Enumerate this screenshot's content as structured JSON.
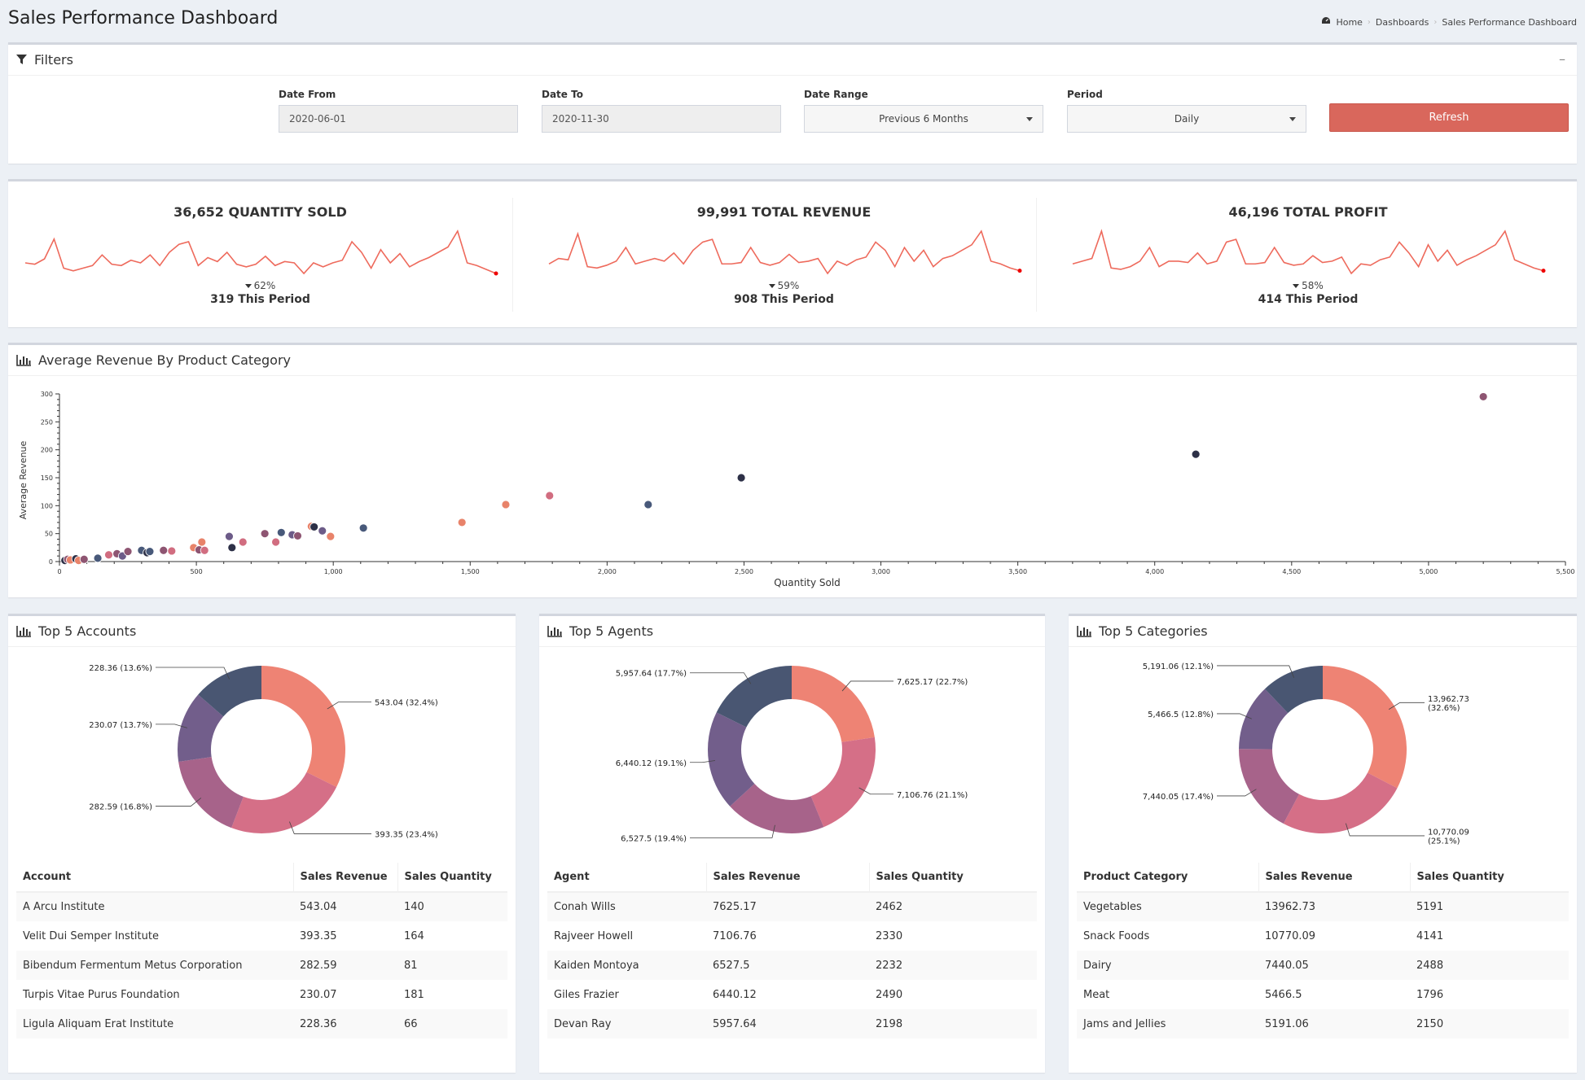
{
  "header": {
    "title": "Sales Performance Dashboard",
    "breadcrumb": [
      "Home",
      "Dashboards",
      "Sales Performance Dashboard"
    ]
  },
  "filters": {
    "title": "Filters",
    "date_from": {
      "label": "Date From",
      "value": "2020-06-01"
    },
    "date_to": {
      "label": "Date To",
      "value": "2020-11-30"
    },
    "date_range": {
      "label": "Date Range",
      "value": "Previous 6 Months"
    },
    "period": {
      "label": "Period",
      "value": "Daily"
    },
    "refresh_label": "Refresh",
    "collapse_icon": "minus-icon"
  },
  "kpis": [
    {
      "title": "36,652 QUANTITY SOLD",
      "change": "62%",
      "period": "319 This Period",
      "spark": [
        12,
        11,
        15,
        30,
        8,
        6,
        8,
        10,
        18,
        11,
        10,
        14,
        12,
        18,
        10,
        20,
        26,
        28,
        10,
        16,
        13,
        20,
        11,
        9,
        11,
        17,
        10,
        13,
        12,
        4,
        12,
        9,
        12,
        14,
        28,
        20,
        8,
        22,
        12,
        19,
        9,
        13,
        16,
        20,
        24,
        36,
        12,
        10,
        7,
        4
      ]
    },
    {
      "title": "99,991 TOTAL REVENUE",
      "change": "59%",
      "period": "908 This Period",
      "spark": [
        10,
        14,
        13,
        32,
        8,
        7,
        9,
        12,
        22,
        10,
        12,
        14,
        12,
        18,
        10,
        20,
        26,
        28,
        10,
        10,
        11,
        22,
        11,
        9,
        11,
        17,
        11,
        12,
        14,
        3,
        12,
        9,
        13,
        15,
        26,
        20,
        8,
        22,
        12,
        20,
        8,
        14,
        16,
        20,
        24,
        34,
        12,
        10,
        7,
        5
      ]
    },
    {
      "title": "46,196 TOTAL PROFIT",
      "change": "58%",
      "period": "414 This Period",
      "spark": [
        10,
        12,
        14,
        34,
        7,
        6,
        8,
        12,
        22,
        8,
        12,
        12,
        11,
        18,
        10,
        12,
        26,
        28,
        10,
        10,
        11,
        22,
        11,
        9,
        10,
        16,
        11,
        12,
        15,
        3,
        10,
        9,
        13,
        15,
        26,
        18,
        8,
        24,
        12,
        20,
        9,
        13,
        16,
        20,
        24,
        34,
        13,
        10,
        7,
        5
      ]
    }
  ],
  "scatter": {
    "title": "Average Revenue By Product Category",
    "chart_data": {
      "type": "scatter",
      "xlabel": "Quantity Sold",
      "ylabel": "Average Revenue",
      "xlim": [
        0,
        5500
      ],
      "ylim": [
        0,
        300
      ],
      "x_ticks": [
        "0",
        "500",
        "1,000",
        "1,500",
        "2,000",
        "2,500",
        "3,000",
        "3,500",
        "4,000",
        "4,500",
        "5,000",
        "5,500"
      ],
      "y_ticks": [
        "0",
        "50",
        "100",
        "150",
        "200",
        "250",
        "300"
      ],
      "points": [
        {
          "x": 20,
          "y": 2,
          "c": "#2d3047"
        },
        {
          "x": 30,
          "y": 4,
          "c": "#8e5572"
        },
        {
          "x": 40,
          "y": 3,
          "c": "#e8836a"
        },
        {
          "x": 60,
          "y": 5,
          "c": "#2d3047"
        },
        {
          "x": 70,
          "y": 2,
          "c": "#e8836a"
        },
        {
          "x": 90,
          "y": 4,
          "c": "#8e5572"
        },
        {
          "x": 140,
          "y": 6,
          "c": "#48597a"
        },
        {
          "x": 180,
          "y": 12,
          "c": "#d16d80"
        },
        {
          "x": 210,
          "y": 14,
          "c": "#8e5572"
        },
        {
          "x": 230,
          "y": 10,
          "c": "#6c5b88"
        },
        {
          "x": 250,
          "y": 18,
          "c": "#8e5572"
        },
        {
          "x": 300,
          "y": 20,
          "c": "#48597a"
        },
        {
          "x": 320,
          "y": 16,
          "c": "#2d3047"
        },
        {
          "x": 330,
          "y": 18,
          "c": "#48597a"
        },
        {
          "x": 380,
          "y": 20,
          "c": "#8e5572"
        },
        {
          "x": 410,
          "y": 19,
          "c": "#d16d80"
        },
        {
          "x": 490,
          "y": 25,
          "c": "#e8836a"
        },
        {
          "x": 510,
          "y": 21,
          "c": "#8e5572"
        },
        {
          "x": 520,
          "y": 35,
          "c": "#e8836a"
        },
        {
          "x": 530,
          "y": 20,
          "c": "#d16d80"
        },
        {
          "x": 620,
          "y": 45,
          "c": "#6c5b88"
        },
        {
          "x": 630,
          "y": 25,
          "c": "#2d3047"
        },
        {
          "x": 670,
          "y": 35,
          "c": "#d16d80"
        },
        {
          "x": 750,
          "y": 50,
          "c": "#8e5572"
        },
        {
          "x": 790,
          "y": 35,
          "c": "#d16d80"
        },
        {
          "x": 810,
          "y": 52,
          "c": "#48597a"
        },
        {
          "x": 850,
          "y": 48,
          "c": "#6c5b88"
        },
        {
          "x": 870,
          "y": 46,
          "c": "#8e5572"
        },
        {
          "x": 920,
          "y": 63,
          "c": "#e8836a"
        },
        {
          "x": 930,
          "y": 62,
          "c": "#2d3047"
        },
        {
          "x": 960,
          "y": 55,
          "c": "#6c5b88"
        },
        {
          "x": 990,
          "y": 45,
          "c": "#e8836a"
        },
        {
          "x": 1110,
          "y": 60,
          "c": "#48597a"
        },
        {
          "x": 1470,
          "y": 70,
          "c": "#e8836a"
        },
        {
          "x": 1630,
          "y": 102,
          "c": "#e8836a"
        },
        {
          "x": 1790,
          "y": 118,
          "c": "#d16d80"
        },
        {
          "x": 2150,
          "y": 102,
          "c": "#48597a"
        },
        {
          "x": 2490,
          "y": 150,
          "c": "#2d3047"
        },
        {
          "x": 4150,
          "y": 192,
          "c": "#2d3047"
        },
        {
          "x": 5200,
          "y": 295,
          "c": "#8e5572"
        }
      ]
    }
  },
  "donut_colors": [
    "#ee8374",
    "#d56f87",
    "#a7638a",
    "#725e8b",
    "#495672"
  ],
  "accounts": {
    "title": "Top 5 Accounts",
    "labels": [
      "543.04 (32.4%)",
      "393.35 (23.4%)",
      "282.59 (16.8%)",
      "230.07 (13.7%)",
      "228.36 (13.6%)"
    ],
    "chart_data": {
      "type": "pie",
      "values": [
        543.04,
        393.35,
        282.59,
        230.07,
        228.36
      ]
    },
    "columns": [
      "Account",
      "Sales Revenue",
      "Sales Quantity"
    ],
    "rows": [
      [
        "A Arcu Institute",
        "543.04",
        "140"
      ],
      [
        "Velit Dui Semper Institute",
        "393.35",
        "164"
      ],
      [
        "Bibendum Fermentum Metus Corporation",
        "282.59",
        "81"
      ],
      [
        "Turpis Vitae Purus Foundation",
        "230.07",
        "181"
      ],
      [
        "Ligula Aliquam Erat Institute",
        "228.36",
        "66"
      ]
    ]
  },
  "agents": {
    "title": "Top 5 Agents",
    "labels": [
      "7,625.17 (22.7%)",
      "7,106.76 (21.1%)",
      "6,527.5 (19.4%)",
      "6,440.12 (19.1%)",
      "5,957.64 (17.7%)"
    ],
    "chart_data": {
      "type": "pie",
      "values": [
        7625.17,
        7106.76,
        6527.5,
        6440.12,
        5957.64
      ]
    },
    "columns": [
      "Agent",
      "Sales Revenue",
      "Sales Quantity"
    ],
    "rows": [
      [
        "Conah Wills",
        "7625.17",
        "2462"
      ],
      [
        "Rajveer Howell",
        "7106.76",
        "2330"
      ],
      [
        "Kaiden Montoya",
        "6527.5",
        "2232"
      ],
      [
        "Giles Frazier",
        "6440.12",
        "2490"
      ],
      [
        "Devan Ray",
        "5957.64",
        "2198"
      ]
    ]
  },
  "categories": {
    "title": "Top 5 Categories",
    "labels": [
      "13,962.73\n(32.6%)",
      "10,770.09\n(25.1%)",
      "7,440.05 (17.4%)",
      "5,466.5 (12.8%)",
      "5,191.06 (12.1%)"
    ],
    "chart_data": {
      "type": "pie",
      "values": [
        13962.73,
        10770.09,
        7440.05,
        5466.5,
        5191.06
      ]
    },
    "columns": [
      "Product Category",
      "Sales Revenue",
      "Sales Quantity"
    ],
    "rows": [
      [
        "Vegetables",
        "13962.73",
        "5191"
      ],
      [
        "Snack Foods",
        "10770.09",
        "4141"
      ],
      [
        "Dairy",
        "7440.05",
        "2488"
      ],
      [
        "Meat",
        "5466.5",
        "1796"
      ],
      [
        "Jams and Jellies",
        "5191.06",
        "2150"
      ]
    ]
  },
  "accent": "#d9675c",
  "spark_color": "#ee6a5c"
}
